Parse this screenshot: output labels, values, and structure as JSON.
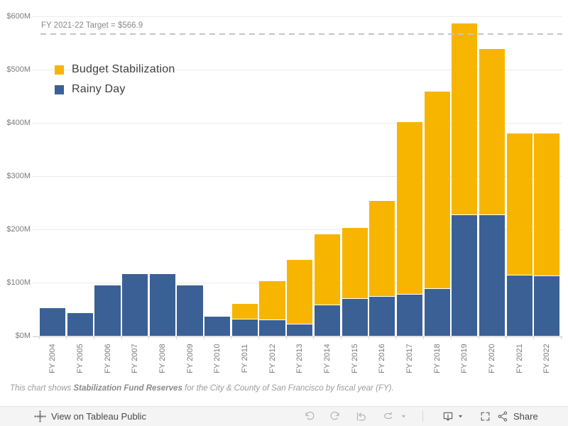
{
  "colors": {
    "budget_stabilization": "#F7B500",
    "rainy_day": "#3A6096",
    "gridline": "#EBEBEB",
    "axis_line": "#D8D8D8",
    "tick_label": "#7B7B7B",
    "target_line": "#C6C6C6",
    "target_label": "#8A8A8A",
    "legend_label": "#3F3F3F",
    "caption_text": "#9B9B9B",
    "toolbar_background": "#F4F4F4"
  },
  "target": {
    "label": "FY 2021-22 Target = $566.9",
    "value": 566.9
  },
  "legend": {
    "items": [
      {
        "label": "Budget Stabilization",
        "color": "#F7B500"
      },
      {
        "label": "Rainy Day",
        "color": "#3A6096"
      }
    ]
  },
  "y_axis": {
    "ticks": [
      {
        "label": "$600M",
        "value": 600
      },
      {
        "label": "$500M",
        "value": 500
      },
      {
        "label": "$400M",
        "value": 400
      },
      {
        "label": "$300M",
        "value": 300
      },
      {
        "label": "$200M",
        "value": 200
      },
      {
        "label": "$100M",
        "value": 100
      },
      {
        "label": "$0M",
        "value": 0
      }
    ]
  },
  "chart_data": {
    "type": "bar",
    "stacked": true,
    "title": "",
    "xlabel": "",
    "ylabel": "",
    "ylim": [
      0,
      600
    ],
    "grid": true,
    "legend_position": "top-left",
    "units": "$M",
    "categories": [
      "FY 2004",
      "FY 2005",
      "FY 2006",
      "FY 2007",
      "FY 2008",
      "FY 2009",
      "FY 2010",
      "FY 2011",
      "FY 2012",
      "FY 2013",
      "FY 2014",
      "FY 2015",
      "FY 2016",
      "FY 2017",
      "FY 2018",
      "FY 2019",
      "FY 2020",
      "FY 2021",
      "FY 2022"
    ],
    "series": [
      {
        "name": "Rainy Day",
        "color": "#3A6096",
        "values": [
          52,
          43,
          95,
          116,
          116,
          95,
          36,
          31,
          29,
          22,
          58,
          70,
          73,
          77,
          88,
          227,
          227,
          113,
          112
        ]
      },
      {
        "name": "Budget Stabilization",
        "color": "#F7B500",
        "values": [
          0,
          0,
          0,
          0,
          0,
          0,
          0,
          28,
          73,
          120,
          132,
          132,
          179,
          323,
          370,
          359,
          310,
          266,
          267
        ]
      }
    ],
    "totals": [
      52,
      43,
      95,
      116,
      116,
      95,
      36,
      59,
      102,
      142,
      190,
      202,
      252,
      400,
      458,
      586,
      537,
      379,
      379
    ],
    "reference_line": {
      "label": "FY 2021-22 Target = $566.9",
      "value": 566.9
    }
  },
  "caption": {
    "text_before": "This chart shows ",
    "text_bold": "Stabilization Fund Reserves",
    "text_after": " for the City & County of San Francisco by fiscal year (FY)."
  },
  "toolbar": {
    "view_on_tableau": "View on Tableau Public",
    "share": "Share",
    "icon_names": [
      "tableau-logo-icon",
      "undo-icon",
      "redo-icon",
      "replay-icon",
      "refresh-icon",
      "caret-down-icon",
      "download-icon",
      "caret-down-icon",
      "fullscreen-icon",
      "share-icon"
    ]
  }
}
